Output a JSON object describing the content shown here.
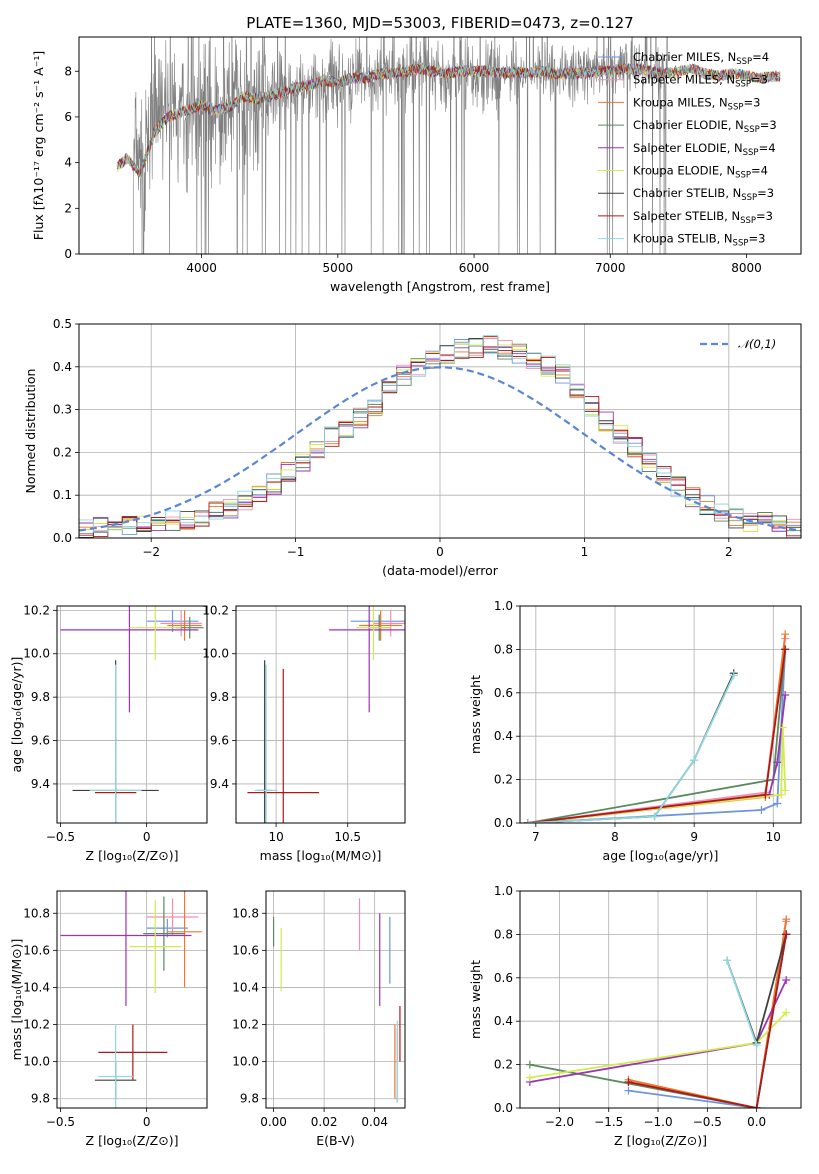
{
  "figure": {
    "title": "PLATE=1360, MJD=53003, FIBERID=0473, z=0.127"
  },
  "colors": {
    "spectrum": "#808080",
    "normal_curve": "#5b86d6"
  },
  "models": [
    {
      "label": "Chabrier MILES, N",
      "sub": "SSP",
      "suffix": "=4",
      "color": "#6f95e0"
    },
    {
      "label": "Salpeter MILES, N",
      "sub": "SSP",
      "suffix": "=3",
      "color": "#f08fb0"
    },
    {
      "label": "Kroupa MILES, N",
      "sub": "SSP",
      "suffix": "=3",
      "color": "#f0772e"
    },
    {
      "label": "Chabrier ELODIE, N",
      "sub": "SSP",
      "suffix": "=3",
      "color": "#5a8a5e"
    },
    {
      "label": "Salpeter ELODIE, N",
      "sub": "SSP",
      "suffix": "=4",
      "color": "#9a35b5"
    },
    {
      "label": "Kroupa ELODIE, N",
      "sub": "SSP",
      "suffix": "=4",
      "color": "#d4ea4c"
    },
    {
      "label": "Chabrier STELIB, N",
      "sub": "SSP",
      "suffix": "=3",
      "color": "#404040"
    },
    {
      "label": "Salpeter STELIB, N",
      "sub": "SSP",
      "suffix": "=3",
      "color": "#b01818"
    },
    {
      "label": "Kroupa STELIB, N",
      "sub": "SSP",
      "suffix": "=3",
      "color": "#8fd8e0"
    }
  ],
  "chart_data": [
    {
      "id": "spectrum",
      "type": "line",
      "xlabel": "wavelength [Angstrom, rest frame]",
      "ylabel": "Flux [fλ10⁻¹⁷ erg cm⁻² s⁻¹ A⁻¹]",
      "xlim": [
        3100,
        8400
      ],
      "ylim": [
        0,
        9.5
      ],
      "xticks": [
        4000,
        5000,
        6000,
        7000,
        8000
      ],
      "yticks": [
        0,
        2,
        4,
        6,
        8
      ],
      "model_curve": {
        "x": [
          3380,
          3450,
          3550,
          3650,
          3750,
          3850,
          4000,
          4100,
          4200,
          4300,
          4400,
          4500,
          4600,
          4700,
          4800,
          4900,
          5000,
          5100,
          5200,
          5300,
          5400,
          5500,
          5600,
          5700,
          5800,
          5900,
          6000,
          6100,
          6200,
          6300,
          6400,
          6500,
          6600,
          6700,
          6800,
          6900,
          7000,
          7100,
          7200,
          7300,
          7400,
          7500,
          7600,
          7700,
          7800,
          7900,
          8000,
          8100,
          8250
        ],
        "y": [
          3.8,
          4.2,
          3.5,
          5.3,
          6.0,
          6.2,
          6.5,
          6.3,
          6.4,
          6.9,
          6.8,
          6.9,
          7.1,
          7.3,
          7.4,
          7.6,
          7.5,
          7.7,
          7.7,
          7.9,
          7.9,
          8.0,
          8.1,
          8.0,
          7.9,
          8.0,
          8.0,
          8.0,
          7.9,
          8.0,
          7.9,
          8.0,
          7.9,
          7.9,
          7.9,
          8.0,
          8.0,
          8.1,
          8.1,
          8.0,
          7.9,
          8.0,
          8.1,
          7.9,
          7.8,
          7.9,
          7.8,
          7.7,
          7.8
        ]
      },
      "data_range": [
        3500,
        7420
      ],
      "legend_position": "upper right"
    },
    {
      "id": "residuals",
      "type": "histogram",
      "xlabel": "(data-model)/error",
      "ylabel": "Normed distribution",
      "xlim": [
        -2.5,
        2.5
      ],
      "ylim": [
        0,
        0.5
      ],
      "xticks": [
        -2,
        -1,
        0,
        1,
        2
      ],
      "yticks": [
        0.0,
        0.1,
        0.2,
        0.3,
        0.4,
        0.5
      ],
      "legend": "𝒩(0,1)",
      "legend_position": "upper right",
      "bin_width": 0.1,
      "bin_start": -2.5,
      "base_heights": [
        0.02,
        0.025,
        0.03,
        0.03,
        0.035,
        0.04,
        0.04,
        0.045,
        0.05,
        0.06,
        0.07,
        0.085,
        0.1,
        0.125,
        0.155,
        0.18,
        0.21,
        0.235,
        0.25,
        0.28,
        0.31,
        0.345,
        0.38,
        0.4,
        0.42,
        0.43,
        0.44,
        0.445,
        0.45,
        0.44,
        0.43,
        0.42,
        0.4,
        0.38,
        0.35,
        0.31,
        0.27,
        0.24,
        0.21,
        0.18,
        0.15,
        0.12,
        0.095,
        0.075,
        0.06,
        0.045,
        0.04,
        0.035,
        0.03,
        0.025
      ]
    },
    {
      "id": "age-vs-Z",
      "type": "errorbar",
      "xlabel": "Z [log₁₀(Z/Z⊙)]",
      "ylabel": "age  [log₁₀(age/yr)]",
      "xlim": [
        -0.52,
        0.35
      ],
      "ylim": [
        9.22,
        10.22
      ],
      "xticks": [
        -0.5,
        0.0
      ],
      "yticks": [
        9.4,
        9.6,
        9.8,
        10.0,
        10.2
      ],
      "points": [
        {
          "m": 0,
          "x": 0.15,
          "y": 10.15,
          "xe": 0.15,
          "ye": 0.05
        },
        {
          "m": 1,
          "x": 0.2,
          "y": 10.14,
          "xe": 0.12,
          "ye": 0.06
        },
        {
          "m": 2,
          "x": 0.22,
          "y": 10.13,
          "xe": 0.1,
          "ye": 0.07
        },
        {
          "m": 3,
          "x": 0.25,
          "y": 10.12,
          "xe": 0.08,
          "ye": 0.05
        },
        {
          "m": 4,
          "x": -0.1,
          "y": 10.11,
          "xe": 0.4,
          "ye": 0.38
        },
        {
          "m": 5,
          "x": 0.05,
          "y": 10.12,
          "xe": 0.15,
          "ye": 0.15
        },
        {
          "m": 6,
          "x": -0.18,
          "y": 9.37,
          "xe": 0.25,
          "ye": 0.6
        },
        {
          "m": 7,
          "x": -0.18,
          "y": 9.36,
          "xe": 0.12,
          "ye": 0.02
        },
        {
          "m": 8,
          "x": -0.18,
          "y": 9.37,
          "xe": 0.15,
          "ye": 0.58
        }
      ]
    },
    {
      "id": "age-vs-mass",
      "type": "errorbar",
      "xlabel": "mass [log₁₀(M/M⊙)]",
      "ylabel": "",
      "xlim": [
        9.72,
        10.9
      ],
      "ylim": [
        9.22,
        10.22
      ],
      "xticks": [
        10,
        10.5
      ],
      "xticklabels": [
        "10",
        "10.5"
      ],
      "yticks": [
        9.4,
        9.6,
        9.8,
        10.0,
        10.2
      ],
      "points": [
        {
          "m": 0,
          "x": 10.72,
          "y": 10.15,
          "xe": 0.2,
          "ye": 0.03
        },
        {
          "m": 1,
          "x": 10.8,
          "y": 10.14,
          "xe": 0.12,
          "ye": 0.06
        },
        {
          "m": 2,
          "x": 10.73,
          "y": 10.13,
          "xe": 0.15,
          "ye": 0.07
        },
        {
          "m": 3,
          "x": 10.72,
          "y": 10.12,
          "xe": 0.08,
          "ye": 0.06
        },
        {
          "m": 4,
          "x": 10.65,
          "y": 10.11,
          "xe": 0.28,
          "ye": 0.38
        },
        {
          "m": 5,
          "x": 10.68,
          "y": 10.12,
          "xe": 0.12,
          "ye": 0.15
        },
        {
          "m": 6,
          "x": 9.92,
          "y": 9.37,
          "xe": 0.05,
          "ye": 0.6
        },
        {
          "m": 7,
          "x": 10.05,
          "y": 9.36,
          "xe": 0.25,
          "ye": 0.57
        },
        {
          "m": 8,
          "x": 9.93,
          "y": 9.37,
          "xe": 0.08,
          "ye": 0.58
        }
      ]
    },
    {
      "id": "weight-vs-age",
      "type": "line",
      "xlabel": "age  [log₁₀(age/yr)]",
      "ylabel": "mass weight",
      "xlim": [
        6.8,
        10.35
      ],
      "ylim": [
        0.0,
        1.0
      ],
      "xticks": [
        7,
        8,
        9,
        10
      ],
      "yticks": [
        0.0,
        0.2,
        0.4,
        0.6,
        0.8,
        1.0
      ],
      "series": [
        {
          "m": 0,
          "x": [
            6.9,
            9.85,
            10.05,
            10.15
          ],
          "y": [
            0.0,
            0.06,
            0.09,
            0.8
          ]
        },
        {
          "m": 1,
          "x": [
            6.9,
            9.9,
            10.15
          ],
          "y": [
            0.0,
            0.14,
            0.85
          ]
        },
        {
          "m": 2,
          "x": [
            6.9,
            9.9,
            10.15
          ],
          "y": [
            0.0,
            0.12,
            0.87
          ]
        },
        {
          "m": 3,
          "x": [
            6.9,
            10.0,
            10.15
          ],
          "y": [
            0.0,
            0.2,
            0.8
          ]
        },
        {
          "m": 4,
          "x": [
            6.9,
            9.95,
            10.05,
            10.15
          ],
          "y": [
            0.0,
            0.13,
            0.28,
            0.59
          ]
        },
        {
          "m": 5,
          "x": [
            6.9,
            10.1,
            10.12,
            10.15
          ],
          "y": [
            0.0,
            0.13,
            0.44,
            0.15
          ]
        },
        {
          "m": 6,
          "x": [
            6.9,
            8.5,
            9.0,
            9.5
          ],
          "y": [
            0.0,
            0.03,
            0.29,
            0.69
          ]
        },
        {
          "m": 7,
          "x": [
            6.9,
            9.9,
            10.15
          ],
          "y": [
            0.0,
            0.13,
            0.8
          ]
        },
        {
          "m": 8,
          "x": [
            6.9,
            8.5,
            9.0,
            9.5
          ],
          "y": [
            0.0,
            0.03,
            0.29,
            0.68
          ]
        }
      ]
    },
    {
      "id": "mass-vs-Z",
      "type": "errorbar",
      "xlabel": "Z [log₁₀(Z/Z⊙)]",
      "ylabel": "mass [log₁₀(M/M⊙)]",
      "xlim": [
        -0.52,
        0.35
      ],
      "ylim": [
        9.75,
        10.92
      ],
      "xticks": [
        -0.5,
        0.0
      ],
      "yticks": [
        9.8,
        10.0,
        10.2,
        10.4,
        10.6,
        10.8
      ],
      "points": [
        {
          "m": 0,
          "x": 0.12,
          "y": 10.72,
          "xe": 0.12,
          "ye": 0.05
        },
        {
          "m": 1,
          "x": 0.15,
          "y": 10.78,
          "xe": 0.15,
          "ye": 0.1
        },
        {
          "m": 2,
          "x": 0.22,
          "y": 10.7,
          "xe": 0.1,
          "ye": 0.3
        },
        {
          "m": 3,
          "x": 0.1,
          "y": 10.69,
          "xe": 0.12,
          "ye": 0.2
        },
        {
          "m": 4,
          "x": -0.12,
          "y": 10.68,
          "xe": 0.38,
          "ye": 0.38
        },
        {
          "m": 5,
          "x": 0.05,
          "y": 10.62,
          "xe": 0.15,
          "ye": 0.25
        },
        {
          "m": 6,
          "x": -0.18,
          "y": 9.9,
          "xe": 0.12,
          "ye": 0.1
        },
        {
          "m": 7,
          "x": -0.08,
          "y": 10.05,
          "xe": 0.2,
          "ye": 0.15
        },
        {
          "m": 8,
          "x": -0.18,
          "y": 9.92,
          "xe": 0.1,
          "ye": 0.28
        }
      ]
    },
    {
      "id": "mass-vs-EBV",
      "type": "errorbar",
      "xlabel": "E(B-V)",
      "ylabel": "",
      "xlim": [
        -0.003,
        0.052
      ],
      "ylim": [
        9.75,
        10.92
      ],
      "xticks": [
        0.0,
        0.02,
        0.04
      ],
      "xticklabels": [
        "0.00",
        "0.02",
        "0.04"
      ],
      "yticks": [
        9.8,
        10.0,
        10.2,
        10.4,
        10.6,
        10.8
      ],
      "points": [
        {
          "m": 0,
          "x": 0.046,
          "y": 10.6,
          "xe": 0,
          "ye": 0.18
        },
        {
          "m": 1,
          "x": 0.034,
          "y": 10.74,
          "xe": 0,
          "ye": 0.14
        },
        {
          "m": 2,
          "x": 0.048,
          "y": 10.0,
          "xe": 0,
          "ye": 0.2
        },
        {
          "m": 3,
          "x": 0.0,
          "y": 10.7,
          "xe": 0,
          "ye": 0.08
        },
        {
          "m": 4,
          "x": 0.042,
          "y": 10.55,
          "xe": 0,
          "ye": 0.25
        },
        {
          "m": 5,
          "x": 0.003,
          "y": 10.55,
          "xe": 0,
          "ye": 0.17
        },
        {
          "m": 6,
          "x": 0.049,
          "y": 9.98,
          "xe": 0,
          "ye": 0.2
        },
        {
          "m": 7,
          "x": 0.05,
          "y": 10.15,
          "xe": 0,
          "ye": 0.15
        },
        {
          "m": 8,
          "x": 0.049,
          "y": 10.0,
          "xe": 0,
          "ye": 0.22
        }
      ]
    },
    {
      "id": "weight-vs-Z",
      "type": "line",
      "xlabel": "Z [log₁₀(Z/Z⊙)]",
      "ylabel": "mass weight",
      "xlim": [
        -2.4,
        0.45
      ],
      "ylim": [
        0.0,
        1.0
      ],
      "xticks": [
        -2.0,
        -1.5,
        -1.0,
        -0.5,
        0.0
      ],
      "xticklabels": [
        "−2.0",
        "−1.5",
        "−1.0",
        "−0.5",
        "0.0"
      ],
      "yticks": [
        0.0,
        0.2,
        0.4,
        0.6,
        0.8,
        1.0
      ],
      "series": [
        {
          "m": 0,
          "x": [
            -1.3,
            0.0,
            0.3
          ],
          "y": [
            0.08,
            0.0,
            0.8
          ]
        },
        {
          "m": 1,
          "x": [
            -1.3,
            0.0,
            0.3
          ],
          "y": [
            0.12,
            0.0,
            0.86
          ]
        },
        {
          "m": 2,
          "x": [
            -1.3,
            0.0,
            0.3
          ],
          "y": [
            0.13,
            0.0,
            0.87
          ]
        },
        {
          "m": 3,
          "x": [
            -2.3,
            0.0,
            0.3
          ],
          "y": [
            0.2,
            0.0,
            0.8
          ]
        },
        {
          "m": 4,
          "x": [
            -2.3,
            0.0,
            0.3
          ],
          "y": [
            0.12,
            0.3,
            0.59
          ]
        },
        {
          "m": 5,
          "x": [
            -2.3,
            0.0,
            0.3
          ],
          "y": [
            0.14,
            0.3,
            0.44
          ]
        },
        {
          "m": 6,
          "x": [
            -0.3,
            0.0,
            0.3
          ],
          "y": [
            0.68,
            0.3,
            0.8
          ]
        },
        {
          "m": 7,
          "x": [
            -1.3,
            0.0,
            0.3
          ],
          "y": [
            0.12,
            0.0,
            0.8
          ]
        },
        {
          "m": 8,
          "x": [
            -0.3,
            0.0
          ],
          "y": [
            0.68,
            0.29
          ]
        }
      ]
    }
  ]
}
